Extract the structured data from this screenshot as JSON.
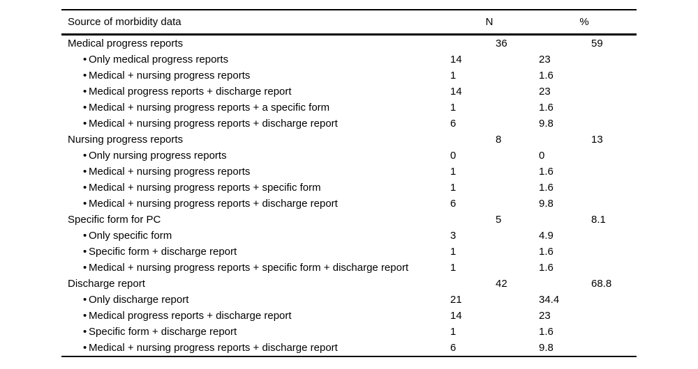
{
  "colors": {
    "background": "#ffffff",
    "text": "#000000",
    "rule": "#000000"
  },
  "table": {
    "bullet_char": "•",
    "headers": {
      "source": "Source of morbidity data",
      "n": "N",
      "pct": "%"
    },
    "rows": [
      {
        "level": "group",
        "label": "Medical progress reports",
        "n": "36",
        "pct": "59"
      },
      {
        "level": "sub",
        "label": "Only medical progress reports",
        "n": "14",
        "pct": "23"
      },
      {
        "level": "sub",
        "label": "Medical + nursing progress reports",
        "n": "1",
        "pct": "1.6"
      },
      {
        "level": "sub",
        "label": "Medical progress reports + discharge report",
        "n": "14",
        "pct": "23"
      },
      {
        "level": "sub",
        "label": "Medical + nursing progress reports + a specific form",
        "n": "1",
        "pct": "1.6"
      },
      {
        "level": "sub",
        "label": "Medical + nursing progress reports + discharge report",
        "n": "6",
        "pct": "9.8"
      },
      {
        "level": "group",
        "label": "Nursing progress reports",
        "n": "8",
        "pct": "13"
      },
      {
        "level": "sub",
        "label": "Only nursing progress reports",
        "n": "0",
        "pct": "0"
      },
      {
        "level": "sub",
        "label": "Medical + nursing progress reports",
        "n": "1",
        "pct": "1.6"
      },
      {
        "level": "sub",
        "label": "Medical + nursing progress reports + specific form",
        "n": "1",
        "pct": "1.6"
      },
      {
        "level": "sub",
        "label": "Medical + nursing progress reports + discharge report",
        "n": "6",
        "pct": "9.8"
      },
      {
        "level": "group",
        "label": "Specific form for PC",
        "n": "5",
        "pct": "8.1"
      },
      {
        "level": "sub",
        "label": "Only specific form",
        "n": "3",
        "pct": "4.9"
      },
      {
        "level": "sub",
        "label": "Specific form + discharge report",
        "n": "1",
        "pct": "1.6"
      },
      {
        "level": "sub",
        "label": "Medical + nursing progress reports + specific form + discharge report",
        "n": "1",
        "pct": "1.6"
      },
      {
        "level": "group",
        "label": "Discharge report",
        "n": "42",
        "pct": "68.8"
      },
      {
        "level": "sub",
        "label": "Only discharge report",
        "n": "21",
        "pct": "34.4"
      },
      {
        "level": "sub",
        "label": "Medical progress reports + discharge report",
        "n": "14",
        "pct": "23"
      },
      {
        "level": "sub",
        "label": "Specific form + discharge report",
        "n": "1",
        "pct": "1.6"
      },
      {
        "level": "sub",
        "label": "Medical + nursing progress reports + discharge report",
        "n": "6",
        "pct": "9.8"
      }
    ]
  }
}
